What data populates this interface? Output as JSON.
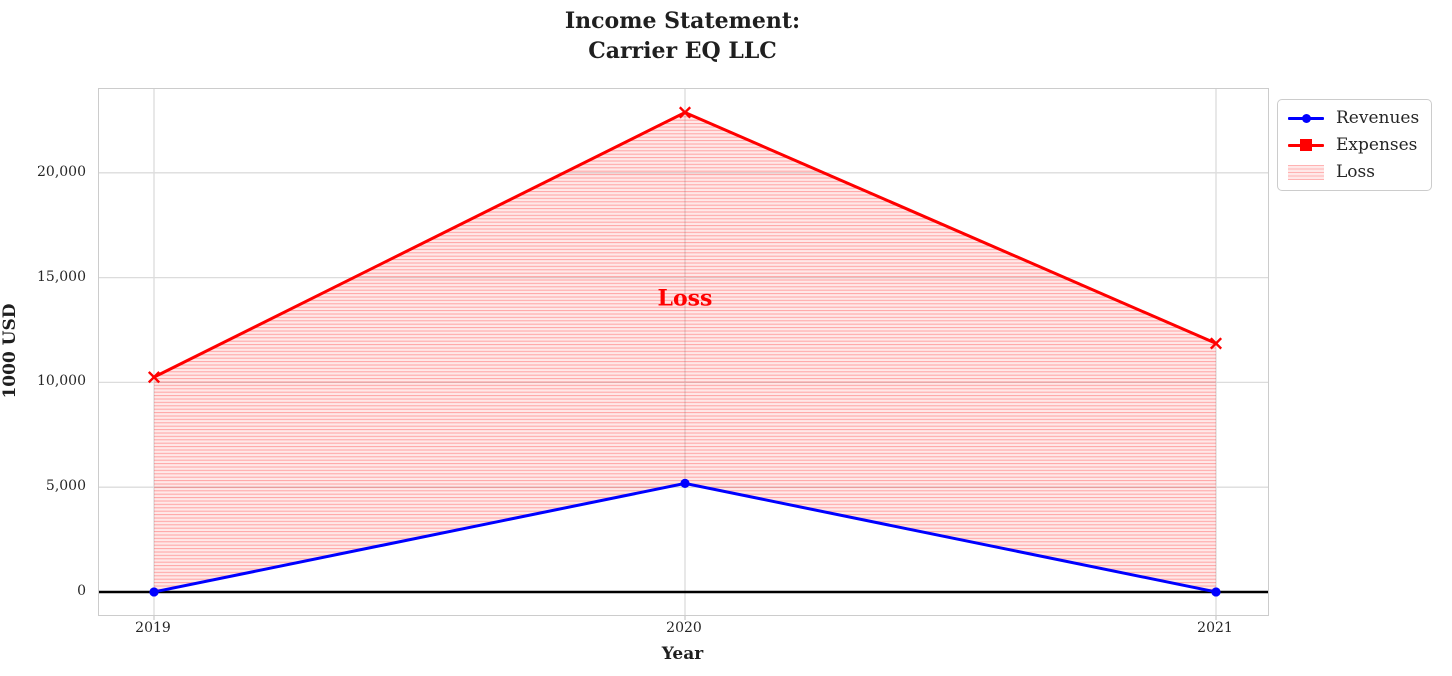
{
  "title": {
    "line1": "Income Statement:",
    "line2": "Carrier EQ LLC"
  },
  "chart_data": {
    "type": "line",
    "categories": [
      "2019",
      "2020",
      "2021"
    ],
    "series": [
      {
        "name": "Revenues",
        "color": "#0000ff",
        "marker": "circle",
        "values": [
          0,
          5180,
          0
        ]
      },
      {
        "name": "Expenses",
        "color": "#ff0000",
        "marker": "x",
        "values": [
          10250,
          22880,
          11860
        ]
      }
    ],
    "fill_between": {
      "name": "Loss",
      "between": [
        "Expenses",
        "Revenues"
      ],
      "color": "#ff0000",
      "hatch": "horizontal-lines",
      "annotation": {
        "text": "Loss",
        "x": "2020",
        "y": 14000
      }
    },
    "xlabel": "Year",
    "ylabel": "1000 USD",
    "ylim": [
      -1100,
      24000
    ],
    "yticks": [
      0,
      5000,
      10000,
      15000,
      20000
    ],
    "ytick_labels": [
      "0",
      "5,000",
      "10,000",
      "15,000",
      "20,000"
    ],
    "grid": true,
    "zero_line": true,
    "legend_position": "outside-upper-right",
    "colors": {
      "grid": "#dcdcdc",
      "frame": "#cccccc",
      "text": "#262626",
      "zero_line": "#000000",
      "background": "#ffffff"
    }
  }
}
